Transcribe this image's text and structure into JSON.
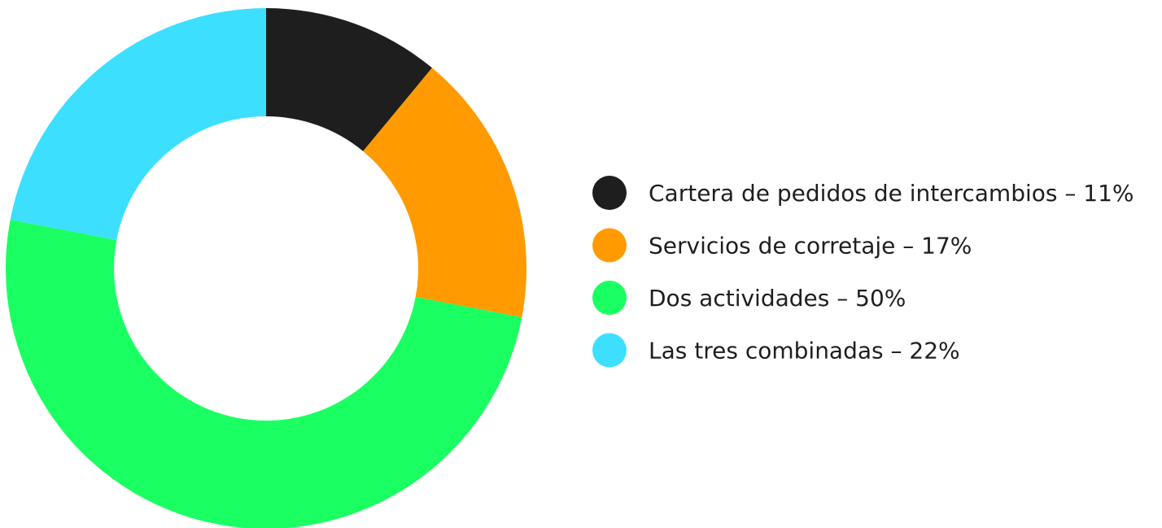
{
  "chart_data": {
    "type": "donut",
    "categories": [
      "Cartera de pedidos de intercambios – 11%",
      "Servicios de corretaje – 17%",
      "Dos actividades – 50%",
      "Las tres combinadas – 22%"
    ],
    "values": [
      11,
      17,
      50,
      22
    ],
    "colors": [
      "#1e1e1e",
      "#ff9b00",
      "#1aff62",
      "#3ddfff"
    ],
    "legend": "right"
  }
}
